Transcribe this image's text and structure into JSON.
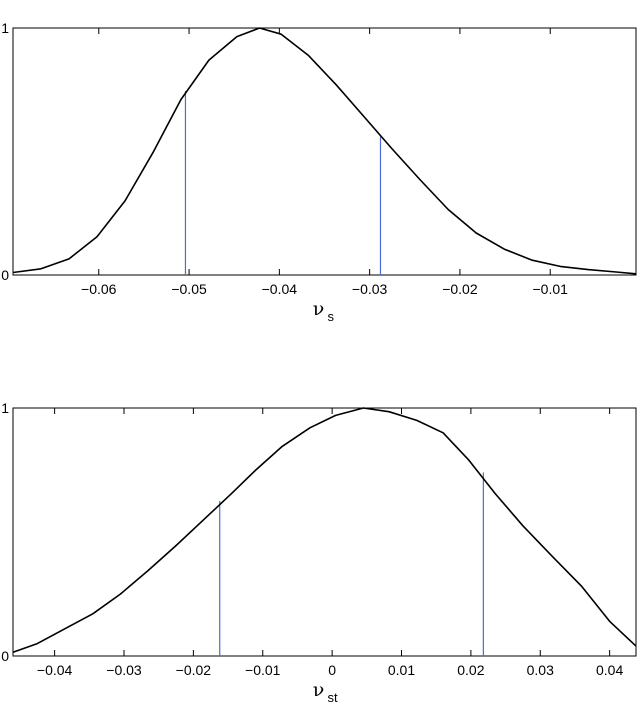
{
  "chart_data": [
    {
      "type": "line",
      "title": "",
      "xlabel": "ν",
      "xlabel_sub": "s",
      "ylabel": "",
      "xlim": [
        -0.0695,
        -0.0005
      ],
      "ylim": [
        0,
        1
      ],
      "xticks": [
        -0.06,
        -0.05,
        -0.04,
        -0.03,
        -0.02,
        -0.01
      ],
      "xtick_labels": [
        "−0.06",
        "−0.05",
        "−0.04",
        "−0.03",
        "−0.02",
        "−0.01"
      ],
      "yticks": [
        0,
        1
      ],
      "ytick_labels": [
        "0",
        "1"
      ],
      "grid": false,
      "series": [
        {
          "color": "#000000",
          "x": [
            -0.0695,
            -0.0664,
            -0.0633,
            -0.0602,
            -0.0571,
            -0.054,
            -0.0509,
            -0.0478,
            -0.0447,
            -0.0422,
            -0.0398,
            -0.0368,
            -0.0337,
            -0.0306,
            -0.0275,
            -0.0244,
            -0.0213,
            -0.0182,
            -0.0151,
            -0.012,
            -0.0089,
            -0.0058,
            -0.0027,
            -0.0005
          ],
          "y": [
            0.01,
            0.025,
            0.065,
            0.155,
            0.3,
            0.495,
            0.71,
            0.87,
            0.965,
            1.0,
            0.975,
            0.89,
            0.77,
            0.64,
            0.51,
            0.385,
            0.265,
            0.17,
            0.105,
            0.06,
            0.035,
            0.022,
            0.012,
            0.005
          ]
        }
      ],
      "vlines": [
        {
          "x": -0.0504,
          "y": 0.745,
          "color": "#4a6cd4"
        },
        {
          "x": -0.0288,
          "y": 0.56,
          "color": "#4a6cd4"
        }
      ]
    },
    {
      "type": "line",
      "title": "",
      "xlabel": "ν",
      "xlabel_sub": "st",
      "ylabel": "",
      "xlim": [
        -0.046,
        0.0438
      ],
      "ylim": [
        0,
        1
      ],
      "xticks": [
        -0.04,
        -0.03,
        -0.02,
        -0.01,
        0,
        0.01,
        0.02,
        0.03,
        0.04
      ],
      "xtick_labels": [
        "−0.04",
        "−0.03",
        "−0.02",
        "−0.01",
        "0",
        "0.01",
        "0.02",
        "0.03",
        "0.04"
      ],
      "yticks": [
        0,
        1
      ],
      "ytick_labels": [
        "0",
        "1"
      ],
      "grid": false,
      "series": [
        {
          "color": "#000000",
          "x": [
            -0.046,
            -0.0425,
            -0.0385,
            -0.0345,
            -0.0305,
            -0.0265,
            -0.0225,
            -0.0185,
            -0.0145,
            -0.011,
            -0.0072,
            -0.0032,
            0.0005,
            0.0045,
            0.0082,
            0.0122,
            0.016,
            0.0197,
            0.0235,
            0.0275,
            0.0318,
            0.036,
            0.04,
            0.0438
          ],
          "y": [
            0.015,
            0.05,
            0.11,
            0.17,
            0.25,
            0.345,
            0.445,
            0.55,
            0.655,
            0.75,
            0.845,
            0.92,
            0.97,
            1.0,
            0.985,
            0.95,
            0.9,
            0.79,
            0.655,
            0.525,
            0.4,
            0.28,
            0.14,
            0.04
          ]
        }
      ],
      "vlines": [
        {
          "x": -0.0162,
          "y": 0.625,
          "color": "#4a6cd4"
        },
        {
          "x": 0.0218,
          "y": 0.74,
          "color": "#4a6cd4"
        }
      ]
    }
  ]
}
